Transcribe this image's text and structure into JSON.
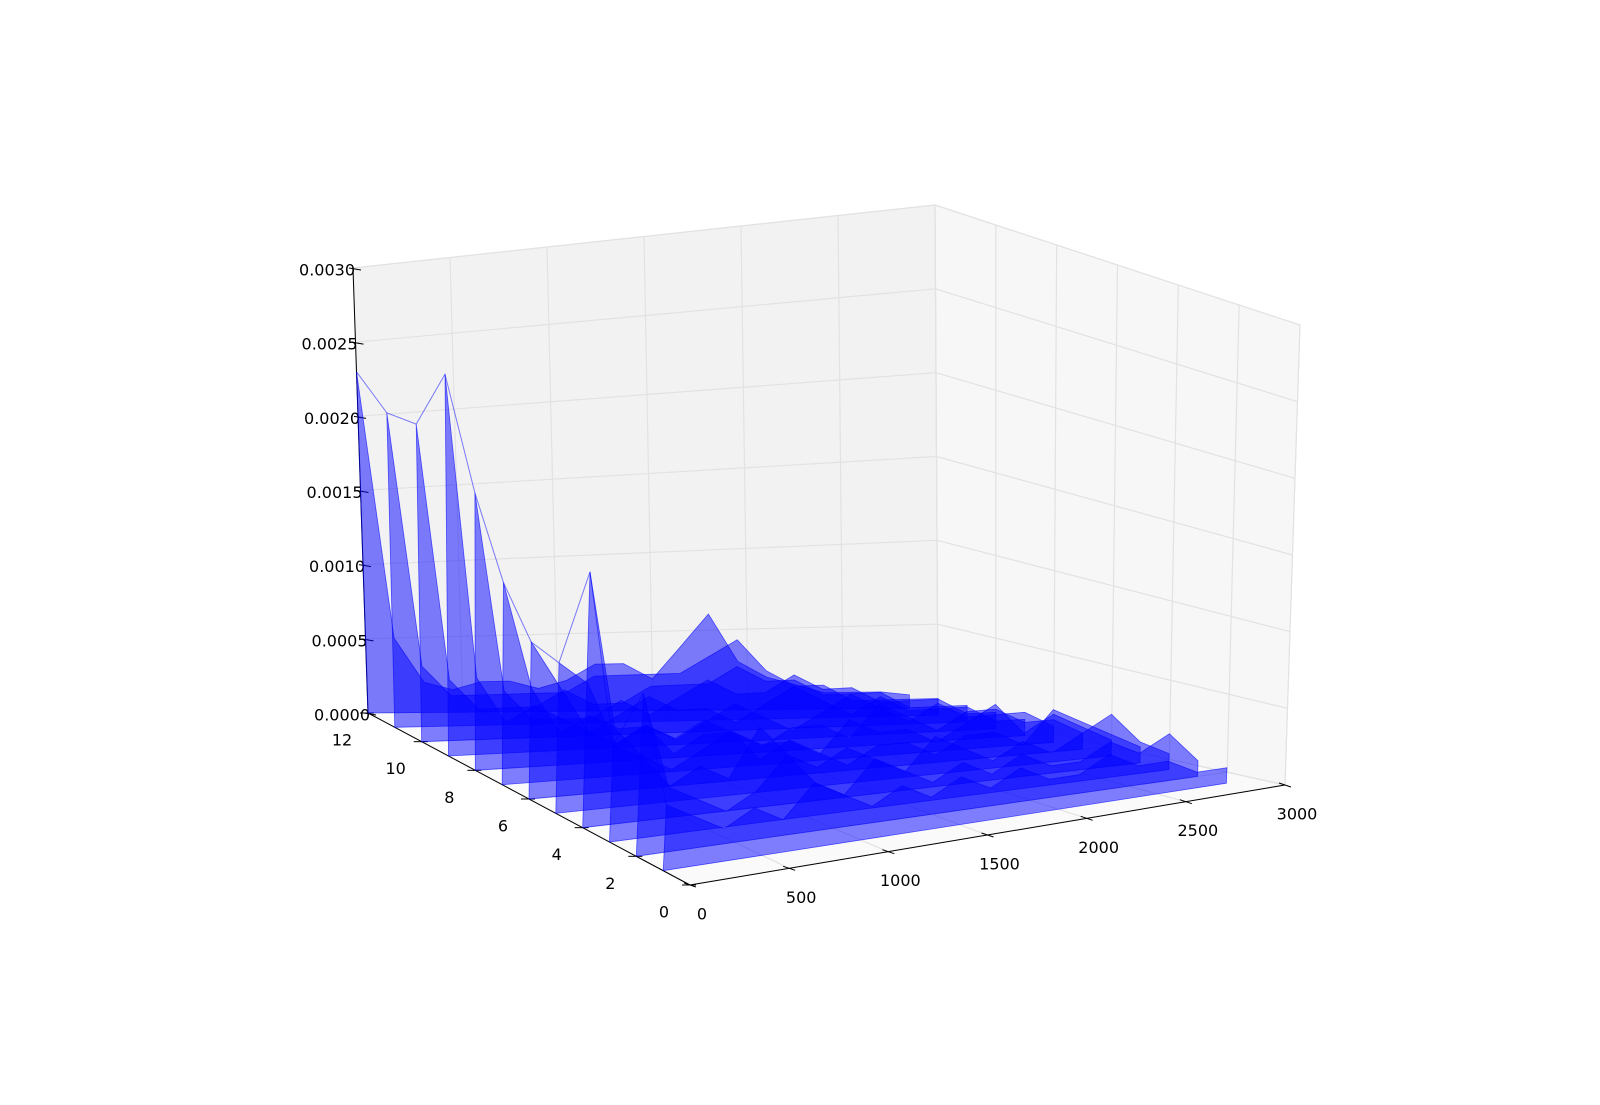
{
  "chart_data": {
    "type": "waterfall3d",
    "color": "#0000ff",
    "xlim": [
      0,
      3000
    ],
    "ylim": [
      0,
      12
    ],
    "zlim": [
      0,
      0.003
    ],
    "xticks": [
      0,
      500,
      1000,
      1500,
      2000,
      2500,
      3000
    ],
    "yticks": [
      0,
      2,
      4,
      6,
      8,
      10,
      12
    ],
    "zticks": [
      {
        "value": 0,
        "label": "0.0000"
      },
      {
        "value": 0.0005,
        "label": "0.0005"
      },
      {
        "value": 0.001,
        "label": "0.0010"
      },
      {
        "value": 0.0015,
        "label": "0.0015"
      },
      {
        "value": 0.002,
        "label": "0.0020"
      },
      {
        "value": 0.0025,
        "label": "0.0025"
      },
      {
        "value": 0.003,
        "label": "0.0030"
      }
    ],
    "grid": true,
    "x": [
      0,
      150,
      300,
      450,
      600,
      750,
      900,
      1050,
      1200,
      1350,
      1500,
      1650,
      1800,
      1950,
      2100,
      2250,
      2400,
      2550,
      2700,
      2850
    ],
    "series": [
      {
        "y": 1,
        "values": [
          0.0004,
          0.0003,
          0.0002,
          0.0003,
          0.0002,
          0.0004,
          0.0003,
          0.0002,
          0.0003,
          0.0002,
          0.0003,
          0.0002,
          0.0003,
          0.0002,
          0.0002,
          0.0003,
          0.0002,
          0.0002,
          0.0001,
          0.0001
        ]
      },
      {
        "y": 2,
        "values": [
          0.001,
          0.0004,
          0.0003,
          0.0002,
          0.0003,
          0.0005,
          0.0003,
          0.0002,
          0.0004,
          0.0003,
          0.0002,
          0.0003,
          0.0002,
          0.0003,
          0.0002,
          0.0002,
          0.0003,
          0.0002,
          0.0003,
          0.0001
        ]
      },
      {
        "y": 3,
        "values": [
          0.0006,
          0.0005,
          0.0003,
          0.0004,
          0.0003,
          0.0006,
          0.0004,
          0.0003,
          0.0004,
          0.0003,
          0.0002,
          0.0004,
          0.0003,
          0.0002,
          0.0003,
          0.0002,
          0.0003,
          0.0004,
          0.0002,
          0.0001
        ]
      },
      {
        "y": 4,
        "values": [
          0.0016,
          0.0006,
          0.0004,
          0.0003,
          0.0004,
          0.0005,
          0.0003,
          0.0004,
          0.0003,
          0.0002,
          0.0003,
          0.0003,
          0.0002,
          0.0003,
          0.0003,
          0.0002,
          0.0004,
          0.0003,
          0.0002,
          0.0001
        ]
      },
      {
        "y": 5,
        "values": [
          0.00095,
          0.0008,
          0.0004,
          0.0005,
          0.0003,
          0.0004,
          0.0004,
          0.0003,
          0.0003,
          0.0002,
          0.0004,
          0.0003,
          0.0003,
          0.0002,
          0.0003,
          0.0004,
          0.0002,
          0.0003,
          0.0002,
          0.0001
        ]
      },
      {
        "y": 6,
        "values": [
          0.001,
          0.0007,
          0.0004,
          0.0003,
          0.0004,
          0.0003,
          0.0004,
          0.0003,
          0.0002,
          0.0003,
          0.0003,
          0.0002,
          0.0004,
          0.0003,
          0.0002,
          0.0003,
          0.0003,
          0.0002,
          0.0002,
          0.0001
        ]
      },
      {
        "y": 7,
        "values": [
          0.0013,
          0.0006,
          0.0003,
          0.0004,
          0.0003,
          0.0003,
          0.0002,
          0.0003,
          0.0004,
          0.0003,
          0.0002,
          0.0003,
          0.0004,
          0.0003,
          0.0002,
          0.0003,
          0.0002,
          0.0002,
          0.0002,
          0.0001
        ]
      },
      {
        "y": 8,
        "values": [
          0.0018,
          0.0005,
          0.0003,
          0.0003,
          0.0002,
          0.0003,
          0.0004,
          0.0003,
          0.0003,
          0.0002,
          0.0003,
          0.0004,
          0.0003,
          0.0002,
          0.0003,
          0.0002,
          0.0002,
          0.0002,
          0.0001,
          0.0001
        ]
      },
      {
        "y": 9,
        "values": [
          0.0025,
          0.0005,
          0.0002,
          0.0003,
          0.0002,
          0.0002,
          0.0003,
          0.0002,
          0.0003,
          0.0004,
          0.0003,
          0.0003,
          0.0004,
          0.0003,
          0.0003,
          0.0002,
          0.0002,
          0.0002,
          0.0001,
          0.0001
        ]
      },
      {
        "y": 10,
        "values": [
          0.0021,
          0.0004,
          0.0002,
          0.0002,
          0.0002,
          0.0003,
          0.0002,
          0.0002,
          0.0003,
          0.0003,
          0.0003,
          0.0004,
          0.0003,
          0.0003,
          0.0002,
          0.0002,
          0.0002,
          0.0001,
          0.0001,
          0.0001
        ]
      },
      {
        "y": 11,
        "values": [
          0.0021,
          0.0004,
          0.0002,
          0.0002,
          0.0002,
          0.0002,
          0.0002,
          0.0003,
          0.0003,
          0.0003,
          0.0003,
          0.0004,
          0.0005,
          0.0003,
          0.0002,
          0.0002,
          0.0001,
          0.0001,
          0.0001,
          0.0001
        ]
      },
      {
        "y": 12,
        "values": [
          0.0023,
          0.0005,
          0.0002,
          0.00015,
          0.0002,
          0.0002,
          0.00015,
          0.0002,
          0.0003,
          0.0003,
          0.0002,
          0.0004,
          0.0006,
          0.0003,
          0.0002,
          0.00015,
          0.0001,
          0.0001,
          0.0001,
          8e-05
        ]
      }
    ]
  }
}
